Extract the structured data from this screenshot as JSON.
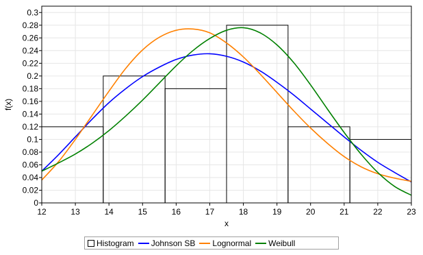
{
  "chart_data": {
    "type": "histogram",
    "title": "",
    "xlabel": "x",
    "ylabel": "f(x)",
    "xlim": [
      12,
      23
    ],
    "ylim": [
      0,
      0.31
    ],
    "x_ticks": [
      "12",
      "13",
      "14",
      "15",
      "16",
      "17",
      "18",
      "19",
      "20",
      "21",
      "22",
      "23"
    ],
    "y_ticks": [
      "0",
      "0.02",
      "0.04",
      "0.06",
      "0.08",
      "0.1",
      "0.12",
      "0.14",
      "0.16",
      "0.18",
      "0.2",
      "0.22",
      "0.24",
      "0.26",
      "0.28",
      "0.3"
    ],
    "grid": true,
    "legend_position": "bottom",
    "histogram": {
      "name": "Histogram",
      "bins": [
        {
          "x0": 12.0,
          "x1": 13.83,
          "value": 0.12
        },
        {
          "x0": 13.83,
          "x1": 15.67,
          "value": 0.2
        },
        {
          "x0": 15.67,
          "x1": 17.5,
          "value": 0.18
        },
        {
          "x0": 17.5,
          "x1": 19.33,
          "value": 0.28
        },
        {
          "x0": 19.33,
          "x1": 21.17,
          "value": 0.12
        },
        {
          "x0": 21.17,
          "x1": 23.0,
          "value": 0.1
        }
      ]
    },
    "series": [
      {
        "name": "Johnson SB",
        "color": "#0000ff",
        "x": [
          12,
          12.5,
          13,
          13.5,
          14,
          14.5,
          15,
          15.5,
          16,
          16.5,
          17,
          17.5,
          18,
          18.5,
          19,
          19.5,
          20,
          20.5,
          21,
          21.5,
          22,
          22.5,
          23
        ],
        "y": [
          0.05,
          0.076,
          0.104,
          0.132,
          0.158,
          0.18,
          0.199,
          0.214,
          0.226,
          0.233,
          0.235,
          0.231,
          0.222,
          0.208,
          0.19,
          0.17,
          0.148,
          0.126,
          0.104,
          0.083,
          0.064,
          0.048,
          0.033
        ]
      },
      {
        "name": "Lognormal",
        "color": "#ff8000",
        "x": [
          12,
          12.5,
          13,
          13.5,
          14,
          14.5,
          15,
          15.5,
          16,
          16.5,
          17,
          17.5,
          18,
          18.5,
          19,
          19.5,
          20,
          20.5,
          21,
          21.5,
          22,
          22.5,
          23
        ],
        "y": [
          0.036,
          0.065,
          0.1,
          0.138,
          0.176,
          0.212,
          0.241,
          0.261,
          0.272,
          0.274,
          0.268,
          0.252,
          0.23,
          0.203,
          0.174,
          0.145,
          0.118,
          0.094,
          0.073,
          0.057,
          0.046,
          0.039,
          0.034
        ]
      },
      {
        "name": "Weibull",
        "color": "#008000",
        "x": [
          12,
          12.5,
          13,
          13.5,
          14,
          14.5,
          15,
          15.5,
          16,
          16.5,
          17,
          17.5,
          18,
          18.5,
          19,
          19.5,
          20,
          20.5,
          21,
          21.5,
          22,
          22.5,
          23
        ],
        "y": [
          0.05,
          0.063,
          0.077,
          0.094,
          0.114,
          0.137,
          0.162,
          0.189,
          0.216,
          0.24,
          0.259,
          0.272,
          0.276,
          0.268,
          0.249,
          0.221,
          0.186,
          0.148,
          0.111,
          0.077,
          0.048,
          0.026,
          0.012
        ]
      }
    ]
  }
}
